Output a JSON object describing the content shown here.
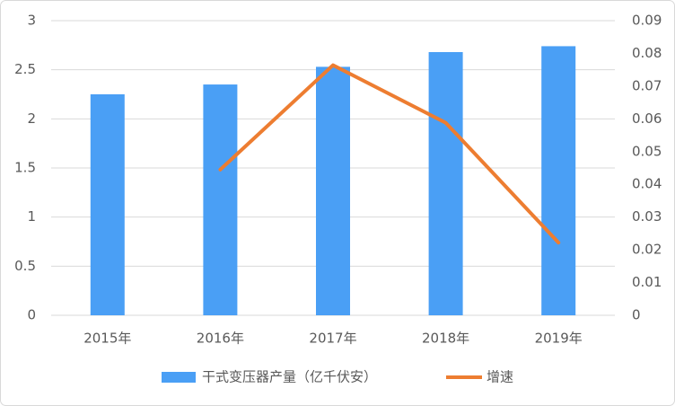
{
  "chart_data": {
    "type": "bar",
    "categories": [
      "2015年",
      "2016年",
      "2017年",
      "2018年",
      "2019年"
    ],
    "series": [
      {
        "name": "干式变压器产量（亿千伏安）",
        "color": "#4a9ff5",
        "type": "bar",
        "values": [
          2.25,
          2.35,
          2.53,
          2.68,
          2.74
        ]
      },
      {
        "name": "增速",
        "color": "#ed7d31",
        "type": "line",
        "axis": "y2",
        "values": [
          null,
          0.0445,
          0.0764,
          0.0588,
          0.0222
        ]
      }
    ],
    "ylim": [
      0,
      3
    ],
    "yticks": [
      0,
      0.5,
      1,
      1.5,
      2,
      2.5,
      3
    ],
    "y2lim": [
      0,
      0.09
    ],
    "y2ticks": [
      0,
      0.01,
      0.02,
      0.03,
      0.04,
      0.05,
      0.06,
      0.07,
      0.08,
      0.09
    ],
    "grid": true,
    "legend": "bottom"
  }
}
